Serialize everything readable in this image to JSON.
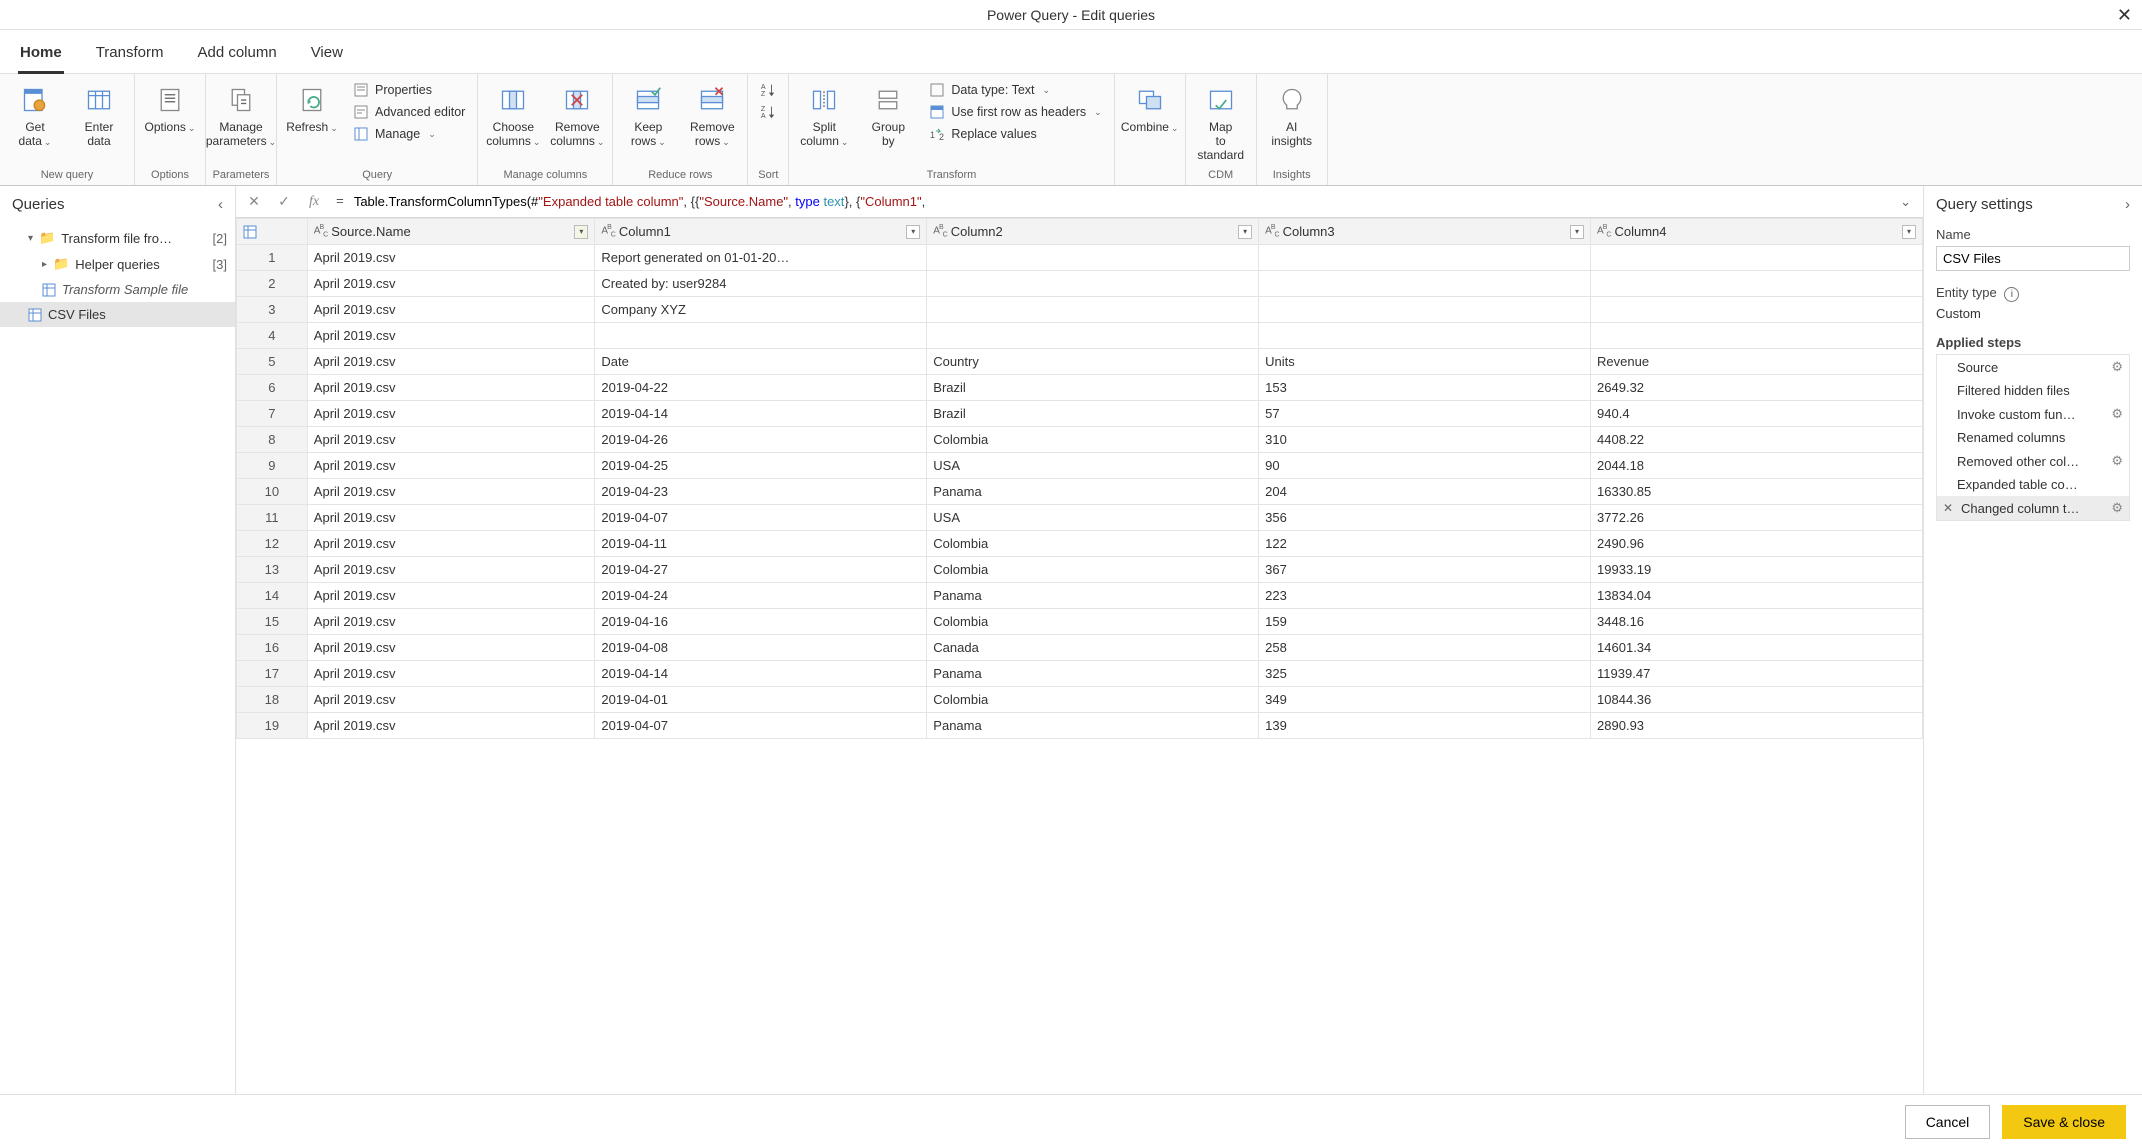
{
  "window": {
    "title": "Power Query - Edit queries"
  },
  "tabs": [
    "Home",
    "Transform",
    "Add column",
    "View"
  ],
  "active_tab": 0,
  "ribbon": {
    "groups": [
      {
        "label": "New query",
        "items_large": [
          {
            "name": "get-data",
            "label": "Get data",
            "caret": true
          },
          {
            "name": "enter-data",
            "label": "Enter data"
          }
        ]
      },
      {
        "label": "Options",
        "items_large": [
          {
            "name": "options",
            "label": "Options",
            "caret": true
          }
        ]
      },
      {
        "label": "Parameters",
        "items_large": [
          {
            "name": "manage-parameters",
            "label": "Manage parameters",
            "caret": true
          }
        ]
      },
      {
        "label": "Query",
        "items_large": [
          {
            "name": "refresh",
            "label": "Refresh",
            "caret": true
          }
        ],
        "items_small": [
          {
            "name": "properties",
            "label": "Properties"
          },
          {
            "name": "advanced-editor",
            "label": "Advanced editor"
          },
          {
            "name": "manage",
            "label": "Manage",
            "caret": true
          }
        ]
      },
      {
        "label": "Manage columns",
        "items_large": [
          {
            "name": "choose-columns",
            "label": "Choose columns",
            "caret": true
          },
          {
            "name": "remove-columns",
            "label": "Remove columns",
            "caret": true
          }
        ]
      },
      {
        "label": "Reduce rows",
        "items_large": [
          {
            "name": "keep-rows",
            "label": "Keep rows",
            "caret": true
          },
          {
            "name": "remove-rows",
            "label": "Remove rows",
            "caret": true
          }
        ]
      },
      {
        "label": "Sort",
        "stack_only": true,
        "items_small": [
          {
            "name": "sort-asc",
            "label": ""
          },
          {
            "name": "sort-desc",
            "label": ""
          }
        ]
      },
      {
        "label": "Transform",
        "items_large": [
          {
            "name": "split-column",
            "label": "Split column",
            "caret": true
          },
          {
            "name": "group-by",
            "label": "Group by"
          }
        ],
        "items_small": [
          {
            "name": "data-type",
            "label": "Data type: Text",
            "caret": true
          },
          {
            "name": "first-row-headers",
            "label": "Use first row as headers",
            "caret": true
          },
          {
            "name": "replace-values",
            "label": "Replace values"
          }
        ]
      },
      {
        "label": "",
        "items_large": [
          {
            "name": "combine",
            "label": "Combine",
            "caret": true
          }
        ]
      },
      {
        "label": "CDM",
        "items_large": [
          {
            "name": "map-to-standard",
            "label": "Map to standard"
          }
        ]
      },
      {
        "label": "Insights",
        "items_large": [
          {
            "name": "ai-insights",
            "label": "AI insights"
          }
        ]
      }
    ]
  },
  "queries": {
    "title": "Queries",
    "items": [
      {
        "level": 1,
        "kind": "folder",
        "name": "Transform file fro…",
        "count": "[2]",
        "expanded": true
      },
      {
        "level": 2,
        "kind": "folder",
        "name": "Helper queries",
        "count": "[3]",
        "expanded": false
      },
      {
        "level": 2,
        "kind": "table",
        "name": "Transform Sample file",
        "italic": true
      },
      {
        "level": 1,
        "kind": "table",
        "name": "CSV Files",
        "selected": true
      }
    ]
  },
  "formula": {
    "prefix": "Table.TransformColumnTypes(#",
    "str1": "\"Expanded table column\"",
    "mid1": ", {{",
    "str2": "\"Source.Name\"",
    "mid2": ", ",
    "kw": "type ",
    "tt": "text",
    "mid3": "}, {",
    "str3": "\"Column1\"",
    "tail": ","
  },
  "grid": {
    "columns": [
      "Source.Name",
      "Column1",
      "Column2",
      "Column3",
      "Column4"
    ],
    "selected_col": 0,
    "rows": [
      [
        "April 2019.csv",
        "Report generated on 01-01-20…",
        "",
        "",
        ""
      ],
      [
        "April 2019.csv",
        "Created by: user9284",
        "",
        "",
        ""
      ],
      [
        "April 2019.csv",
        "Company XYZ",
        "",
        "",
        ""
      ],
      [
        "April 2019.csv",
        "",
        "",
        "",
        ""
      ],
      [
        "April 2019.csv",
        "Date",
        "Country",
        "Units",
        "Revenue"
      ],
      [
        "April 2019.csv",
        "2019-04-22",
        "Brazil",
        "153",
        "2649.32"
      ],
      [
        "April 2019.csv",
        "2019-04-14",
        "Brazil",
        "57",
        "940.4"
      ],
      [
        "April 2019.csv",
        "2019-04-26",
        "Colombia",
        "310",
        "4408.22"
      ],
      [
        "April 2019.csv",
        "2019-04-25",
        "USA",
        "90",
        "2044.18"
      ],
      [
        "April 2019.csv",
        "2019-04-23",
        "Panama",
        "204",
        "16330.85"
      ],
      [
        "April 2019.csv",
        "2019-04-07",
        "USA",
        "356",
        "3772.26"
      ],
      [
        "April 2019.csv",
        "2019-04-11",
        "Colombia",
        "122",
        "2490.96"
      ],
      [
        "April 2019.csv",
        "2019-04-27",
        "Colombia",
        "367",
        "19933.19"
      ],
      [
        "April 2019.csv",
        "2019-04-24",
        "Panama",
        "223",
        "13834.04"
      ],
      [
        "April 2019.csv",
        "2019-04-16",
        "Colombia",
        "159",
        "3448.16"
      ],
      [
        "April 2019.csv",
        "2019-04-08",
        "Canada",
        "258",
        "14601.34"
      ],
      [
        "April 2019.csv",
        "2019-04-14",
        "Panama",
        "325",
        "11939.47"
      ],
      [
        "April 2019.csv",
        "2019-04-01",
        "Colombia",
        "349",
        "10844.36"
      ],
      [
        "April 2019.csv",
        "2019-04-07",
        "Panama",
        "139",
        "2890.93"
      ]
    ]
  },
  "settings": {
    "title": "Query settings",
    "name_label": "Name",
    "name_value": "CSV Files",
    "entity_label": "Entity type",
    "entity_value": "Custom",
    "steps_label": "Applied steps",
    "steps": [
      {
        "name": "Source",
        "gear": true
      },
      {
        "name": "Filtered hidden files"
      },
      {
        "name": "Invoke custom fun…",
        "gear": true
      },
      {
        "name": "Renamed columns"
      },
      {
        "name": "Removed other col…",
        "gear": true
      },
      {
        "name": "Expanded table co…"
      },
      {
        "name": "Changed column t…",
        "gear": true,
        "selected": true
      }
    ]
  },
  "footer": {
    "cancel": "Cancel",
    "save": "Save & close"
  },
  "colors": {
    "accent": "#f3c811",
    "border": "#e0e0e0",
    "header_bg": "#f3f3f3"
  }
}
